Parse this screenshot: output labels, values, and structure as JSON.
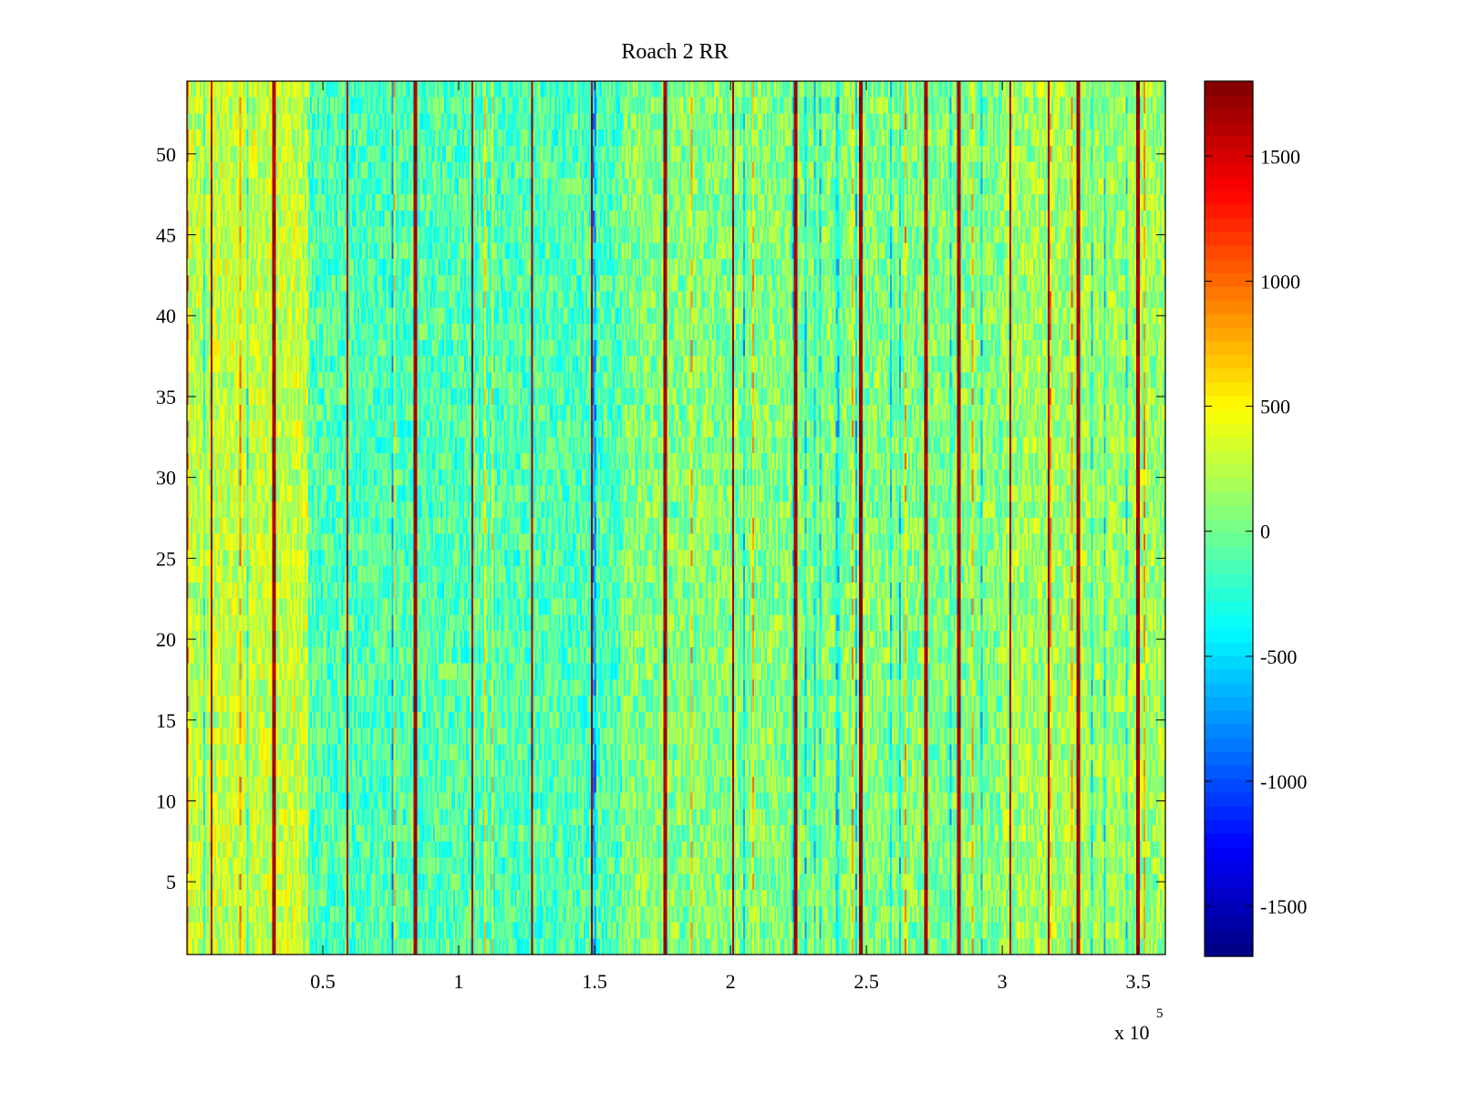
{
  "chart_data": {
    "type": "heatmap",
    "title": "Roach 2 RR",
    "xlabel": "",
    "ylabel": "",
    "x_exponent_label": "x 10",
    "x_exponent_power": "5",
    "xlim": [
      0.0,
      3.6
    ],
    "ylim": [
      0.5,
      54.5
    ],
    "rows": 54,
    "x_ticks": [
      0.5,
      1,
      1.5,
      2,
      2.5,
      3,
      3.5
    ],
    "x_tick_labels": [
      "0.5",
      "1",
      "1.5",
      "2",
      "2.5",
      "3",
      "3.5"
    ],
    "y_ticks": [
      5,
      10,
      15,
      20,
      25,
      30,
      35,
      40,
      45,
      50
    ],
    "y_tick_labels": [
      "5",
      "10",
      "15",
      "20",
      "25",
      "30",
      "35",
      "40",
      "45",
      "50"
    ],
    "colorbar": {
      "colormap": "jet",
      "clim": [
        -1700,
        1800
      ],
      "ticks": [
        -1500,
        -1000,
        -500,
        0,
        500,
        1000,
        1500
      ],
      "tick_labels": [
        "-1500",
        "-1000",
        "-500",
        "0",
        "500",
        "1000",
        "1500"
      ]
    },
    "description_values": {
      "background_range": [
        -700,
        600
      ],
      "dark_stripe_value": 1800,
      "dark_stripe_x": [
        0.09,
        0.32,
        0.59,
        0.84,
        1.05,
        1.27,
        1.49,
        1.76,
        2.01,
        2.24,
        2.48,
        2.72,
        2.84,
        3.03,
        3.17,
        3.28,
        3.5
      ]
    },
    "grid": false
  },
  "colors": {
    "axis": "#000000",
    "background": "#ffffff"
  }
}
